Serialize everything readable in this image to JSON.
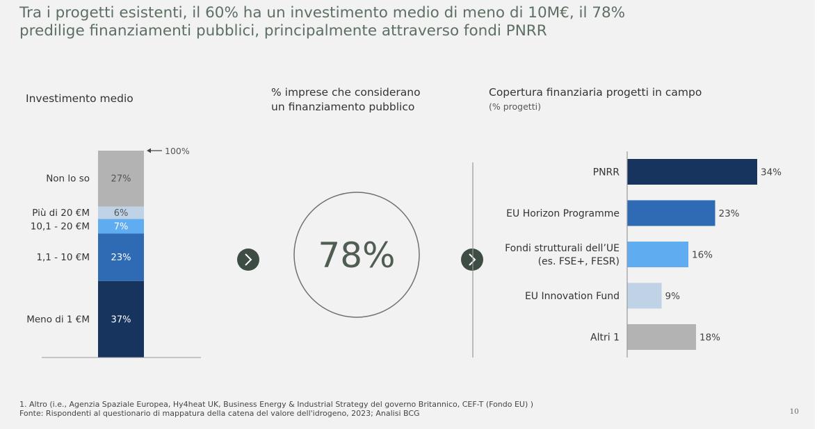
{
  "title": {
    "line1": "Tra i progetti esistenti, il 60% ha un investimento medio di meno di 10M€, il 78%",
    "line2": "predilige finanziamenti pubblici, principalmente attraverso fondi PNRR"
  },
  "left": {
    "heading": "Investimento medio"
  },
  "middle": {
    "heading_line1": "% imprese che considerano",
    "heading_line2": "un finanziamento pubblico",
    "big_value": "78%"
  },
  "right": {
    "heading": "Copertura finanziaria progetti in campo",
    "subheading": "(% progetti)"
  },
  "chart_data": [
    {
      "type": "bar",
      "stacked": true,
      "total_label": "100%",
      "segments": [
        {
          "label": "Meno di 1 €M",
          "value": 37,
          "value_label": "37%",
          "color": "#17345e"
        },
        {
          "label": "1,1 - 10 €M",
          "value": 23,
          "value_label": "23%",
          "color": "#2f6bb5"
        },
        {
          "label": "10,1 - 20 €M",
          "value": 7,
          "value_label": "7%",
          "color": "#5fadf0"
        },
        {
          "label": "Più di 20 €M",
          "value": 6,
          "value_label": "6%",
          "color": "#bfd2e6"
        },
        {
          "label": "Non lo so",
          "value": 27,
          "value_label": "27%",
          "color": "#b3b3b3"
        }
      ]
    },
    {
      "type": "bar",
      "orientation": "horizontal",
      "xlim": [
        0,
        34
      ],
      "categories": [
        {
          "label_lines": [
            "PNRR"
          ],
          "value": 34,
          "value_label": "34%",
          "color": "#17345e"
        },
        {
          "label_lines": [
            "EU Horizon Programme"
          ],
          "value": 23,
          "value_label": "23%",
          "color": "#2f6bb5"
        },
        {
          "label_lines": [
            "Fondi strutturali dell’UE",
            "(es. FSE+, FESR)"
          ],
          "value": 16,
          "value_label": "16%",
          "color": "#5fadf0"
        },
        {
          "label_lines": [
            "EU Innovation Fund"
          ],
          "value": 9,
          "value_label": "9%",
          "color": "#bfd2e6"
        },
        {
          "label_lines": [
            "Altri 1"
          ],
          "value": 18,
          "value_label": "18%",
          "color": "#b3b3b3"
        }
      ]
    }
  ],
  "footer": {
    "note": "1. Altro (i.e., Agenzia Spaziale Europea, Hy4heat UK, Business Energy & Industrial Strategy del governo Britannico, CEF-T (Fondo EU) )",
    "source": "Fonte: Rispondenti al questionario di mappatura della catena del valore dell'idrogeno, 2023; Analisi BCG",
    "page": "10"
  },
  "colors": {
    "title": "#5d6f63",
    "arrow_circle": "#3d4d43",
    "divider": "#999999"
  },
  "icons": {
    "arrow": "chevron-right-icon",
    "total_marker": "arrow-left-icon"
  }
}
